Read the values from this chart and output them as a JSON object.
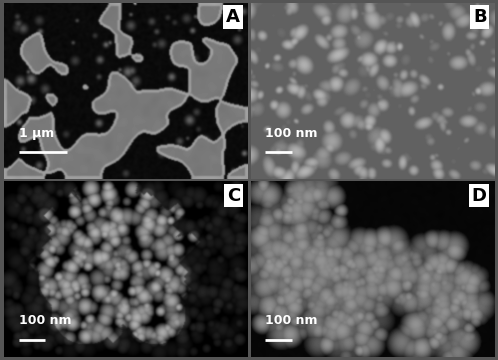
{
  "figure_size": [
    4.98,
    3.6
  ],
  "dpi": 100,
  "outer_bg": "#555555",
  "label_fontsize": 13,
  "label_color": "black",
  "label_bg": "white",
  "scale_bar_color": "white",
  "scale_bar_text_color": "white",
  "scale_bar_fontsize": 9,
  "labels": [
    "A",
    "B",
    "C",
    "D"
  ],
  "scale_texts": [
    "1 μm",
    "100 nm",
    "100 nm",
    "100 nm"
  ],
  "seed": 12345
}
